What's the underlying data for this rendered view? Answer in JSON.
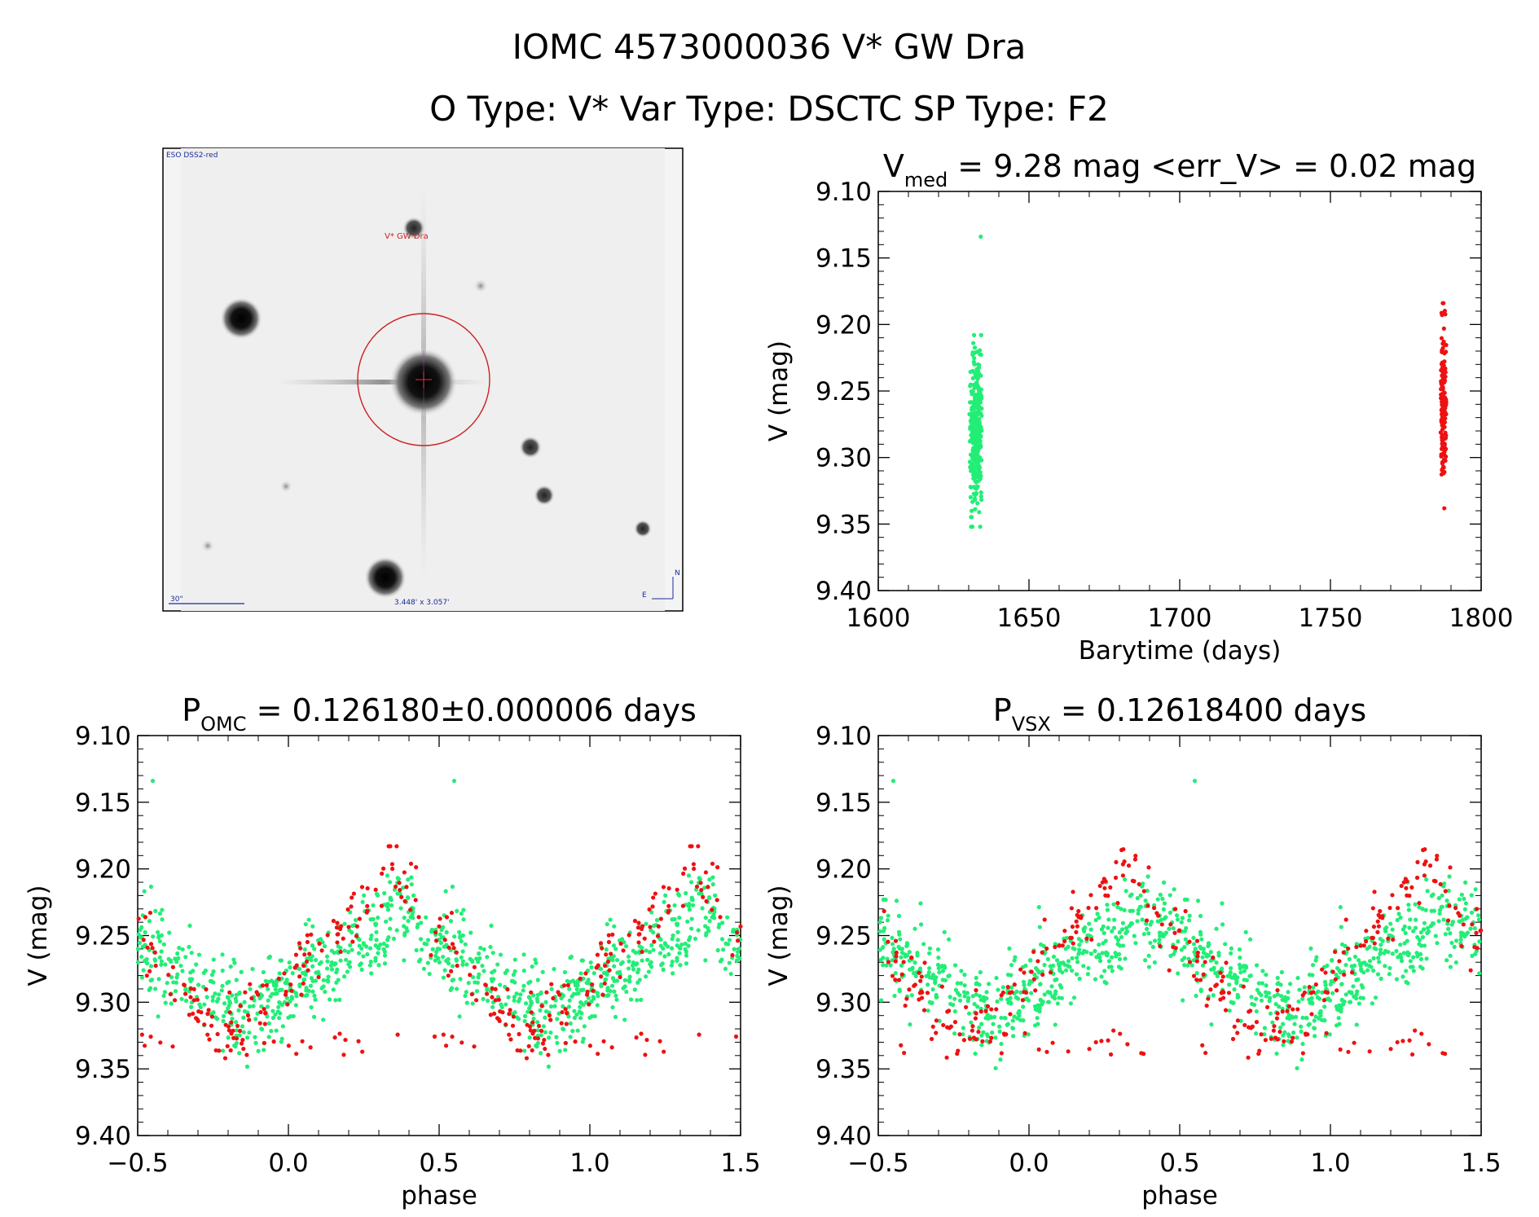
{
  "header": {
    "line1": "IOMC 4573000036   V* GW Dra",
    "line2": "O Type: V*  Var Type: DSCTC  SP Type: F2"
  },
  "image_panel": {
    "survey_label": "ESO DSS2-red",
    "target_label": "V* GW Dra",
    "scale_label": "30\"",
    "fov_label": "3.448' x 3.057'",
    "compass_n": "N",
    "compass_e": "E"
  },
  "colors": {
    "green": "#22ee77",
    "red": "#ee1111",
    "target_marker": "#cc2222",
    "label_blue": "#1a2b9a"
  },
  "chart_data": [
    {
      "type": "scatter",
      "title": {
        "main": "V",
        "sub": "med",
        "rest": " = 9.28 mag <err_V> = 0.02 mag"
      },
      "xlabel": "Barytime (days)",
      "ylabel": "V (mag)",
      "xlim": [
        1600,
        1800
      ],
      "ylim": [
        9.4,
        9.1
      ],
      "xticks": [
        "1600",
        "1650",
        "1700",
        "1750",
        "1800"
      ],
      "yticks": [
        "9.10",
        "9.15",
        "9.20",
        "9.25",
        "9.30",
        "9.35",
        "9.40"
      ],
      "series": [
        {
          "color": "green",
          "x_range": [
            1630.2,
            1634.6
          ],
          "y_range": [
            9.208,
            9.352
          ],
          "n": 380,
          "outliers": [
            [
              1634.0,
              9.134
            ],
            [
              1630.8,
              9.352
            ]
          ]
        },
        {
          "color": "red",
          "x_range": [
            1786.5,
            1788.5
          ],
          "y_range": [
            9.184,
            9.341
          ],
          "n": 150,
          "outliers": []
        }
      ]
    },
    {
      "type": "scatter",
      "title": {
        "main": "P",
        "sub": "OMC",
        "rest": " = 0.126180±0.000006 days"
      },
      "xlabel": "phase",
      "ylabel": "V (mag)",
      "xlim": [
        -0.5,
        1.5
      ],
      "ylim": [
        9.4,
        9.1
      ],
      "xticks": [
        "−0.5",
        "0.0",
        "0.5",
        "1.0",
        "1.5"
      ],
      "yticks": [
        "9.10",
        "9.15",
        "9.20",
        "9.25",
        "9.30",
        "9.35",
        "9.40"
      ],
      "series": [
        {
          "color": "green",
          "curve": "min≈9.31 at phase −0.13, max≈9.23 at phase 0.37",
          "n": 500,
          "outliers": [
            [
              -0.45,
              9.134
            ],
            [
              0.55,
              9.134
            ]
          ]
        },
        {
          "color": "red",
          "curve": "min≈9.33 at phase −0.20, max≈9.185 at phase 0.35",
          "n": 170,
          "outliers": []
        }
      ]
    },
    {
      "type": "scatter",
      "title": {
        "main": "P",
        "sub": "VSX",
        "rest": " = 0.12618400 days"
      },
      "xlabel": "phase",
      "ylabel": "V (mag)",
      "xlim": [
        -0.5,
        1.5
      ],
      "ylim": [
        9.4,
        9.1
      ],
      "xticks": [
        "−0.5",
        "0.0",
        "0.5",
        "1.0",
        "1.5"
      ],
      "yticks": [
        "9.10",
        "9.15",
        "9.20",
        "9.25",
        "9.30",
        "9.35",
        "9.40"
      ],
      "series": [
        {
          "color": "green",
          "curve": "min≈9.31 at phase −0.13, max≈9.23 at phase 0.37",
          "n": 500,
          "outliers": [
            [
              -0.45,
              9.134
            ],
            [
              0.55,
              9.134
            ]
          ]
        },
        {
          "color": "red",
          "curve": "min≈9.33 at phase −0.23, max≈9.185 at phase 0.32",
          "n": 170,
          "outliers": []
        }
      ]
    }
  ]
}
